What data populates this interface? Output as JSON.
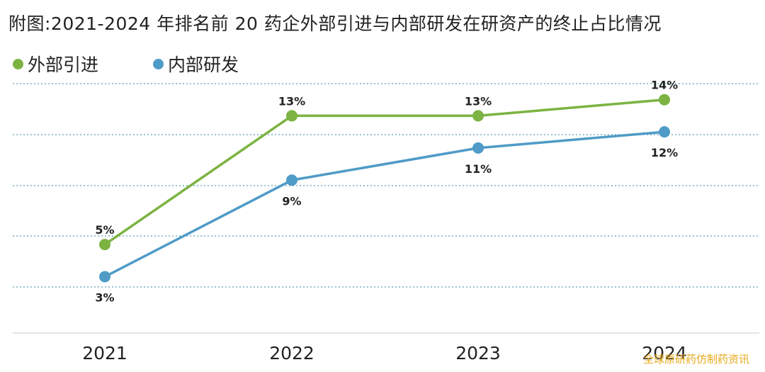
{
  "title": "附图:2021-2024 年排名前 20 药企外部引进与内部研发在研资产的终止占比情况",
  "watermark": "全球原研药仿制药资讯",
  "colors": {
    "external": "#7cb342",
    "internal": "#4f9bc7",
    "grid": "#5a9fb0"
  },
  "chart_data": {
    "type": "line",
    "title": "附图:2021-2024 年排名前 20 药企外部引进与内部研发在研资产的终止占比情况",
    "categories": [
      "2021",
      "2022",
      "2023",
      "2024"
    ],
    "series": [
      {
        "name": "外部引进",
        "values": [
          5,
          13,
          13,
          14
        ],
        "labels": [
          "5%",
          "13%",
          "13%",
          "14%"
        ]
      },
      {
        "name": "内部研发",
        "values": [
          3,
          9,
          11,
          12
        ],
        "labels": [
          "3%",
          "9%",
          "11%",
          "12%"
        ]
      }
    ],
    "ylim": [
      -0.5,
      15
    ],
    "grid": true,
    "legend": "top-left",
    "xlabel": "",
    "ylabel": ""
  }
}
